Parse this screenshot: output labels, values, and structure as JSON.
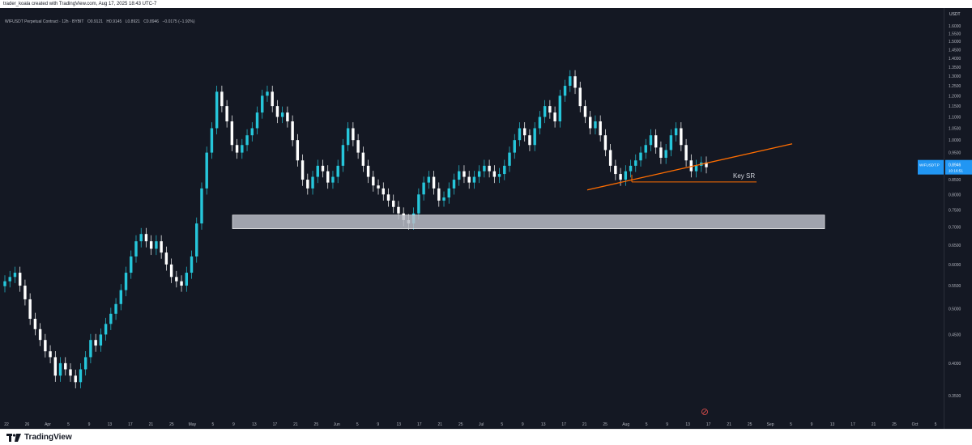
{
  "caption": "trader_koala created with TradingView.com, Aug 17, 2025 18:43 UTC-7",
  "legend": {
    "symbol": "WIFUSDT Perpetual Contract · 12h · BYBIT",
    "open": "O0.9121",
    "high": "H0.9145",
    "low": "L0.8921",
    "close": "C0.8946",
    "change": "−0.0175 (−1.92%)"
  },
  "price_axis": {
    "currency": "USDT",
    "ticks": [
      "1.6500",
      "1.6000",
      "1.5500",
      "1.5000",
      "1.4500",
      "1.4000",
      "1.3500",
      "1.3000",
      "1.2500",
      "1.2000",
      "1.1500",
      "1.1000",
      "1.0500",
      "1.0000",
      "0.9500",
      "0.9000",
      "0.8500",
      "0.8000",
      "0.7500",
      "0.7000",
      "0.6500",
      "0.6000",
      "0.5500",
      "0.5000",
      "0.4500",
      "0.4000",
      "0.3500"
    ],
    "last_label": "WIFUSDT.P",
    "last_price": "0.8946",
    "countdown": "10:16:51"
  },
  "time_axis": [
    "22",
    "26",
    "Apr",
    "5",
    "9",
    "13",
    "17",
    "21",
    "25",
    "May",
    "5",
    "9",
    "13",
    "17",
    "21",
    "25",
    "Jun",
    "5",
    "9",
    "13",
    "17",
    "21",
    "25",
    "Jul",
    "5",
    "9",
    "13",
    "17",
    "21",
    "25",
    "Aug",
    "5",
    "9",
    "13",
    "17",
    "21",
    "25",
    "Sep",
    "5",
    "9",
    "13",
    "17",
    "21",
    "25",
    "Oct",
    "5"
  ],
  "annotations": {
    "key_sr": "Key SR"
  },
  "footer": {
    "brand": "TradingView"
  },
  "colors": {
    "background": "#141823",
    "up": "#26c6da",
    "down": "#ffffff",
    "trendline": "#ff6d00",
    "zone": "#b8bcc6",
    "accent": "#2196f3"
  },
  "chart_data": {
    "type": "candlestick",
    "title": "WIFUSDT Perpetual Contract · 12h · BYBIT",
    "ylim": [
      0.32,
      1.72
    ],
    "y_scale": "log",
    "series": [
      {
        "name": "WIFUSDT.P",
        "close": [
          0.56,
          0.57,
          0.58,
          0.55,
          0.52,
          0.48,
          0.46,
          0.44,
          0.42,
          0.41,
          0.38,
          0.4,
          0.39,
          0.38,
          0.37,
          0.39,
          0.41,
          0.44,
          0.43,
          0.45,
          0.47,
          0.49,
          0.51,
          0.54,
          0.58,
          0.62,
          0.66,
          0.68,
          0.66,
          0.64,
          0.66,
          0.63,
          0.6,
          0.57,
          0.56,
          0.55,
          0.58,
          0.62,
          0.71,
          0.82,
          0.95,
          1.05,
          1.22,
          1.15,
          1.08,
          0.98,
          0.95,
          0.98,
          1.02,
          1.05,
          1.12,
          1.2,
          1.22,
          1.15,
          1.1,
          1.12,
          1.08,
          1.0,
          0.92,
          0.85,
          0.82,
          0.86,
          0.9,
          0.88,
          0.84,
          0.86,
          0.9,
          0.98,
          1.05,
          1.0,
          0.95,
          0.9,
          0.86,
          0.83,
          0.82,
          0.8,
          0.78,
          0.76,
          0.74,
          0.72,
          0.71,
          0.74,
          0.8,
          0.84,
          0.86,
          0.82,
          0.78,
          0.79,
          0.82,
          0.85,
          0.88,
          0.86,
          0.84,
          0.86,
          0.88,
          0.9,
          0.88,
          0.86,
          0.87,
          0.9,
          0.95,
          1.0,
          1.05,
          1.02,
          0.98,
          1.05,
          1.1,
          1.15,
          1.12,
          1.08,
          1.2,
          1.25,
          1.3,
          1.24,
          1.15,
          1.1,
          1.05,
          1.08,
          1.02,
          0.96,
          0.9,
          0.87,
          0.85,
          0.88,
          0.9,
          0.92,
          0.95,
          0.98,
          1.02,
          0.97,
          0.93,
          0.96,
          1.02,
          1.05,
          0.98,
          0.92,
          0.88,
          0.9,
          0.9121,
          0.8946
        ]
      }
    ],
    "zones": [
      {
        "from": 0.695,
        "to": 0.735
      }
    ],
    "trendlines": [
      {
        "from": {
          "date": "Jul 29",
          "price": 0.815
        },
        "to": {
          "date": "Aug 30",
          "price": 0.985
        }
      },
      {
        "from": {
          "date": "Aug 2",
          "price": 0.842
        },
        "to": {
          "date": "Sep 1",
          "price": 0.842
        },
        "label": "Key SR"
      }
    ]
  }
}
